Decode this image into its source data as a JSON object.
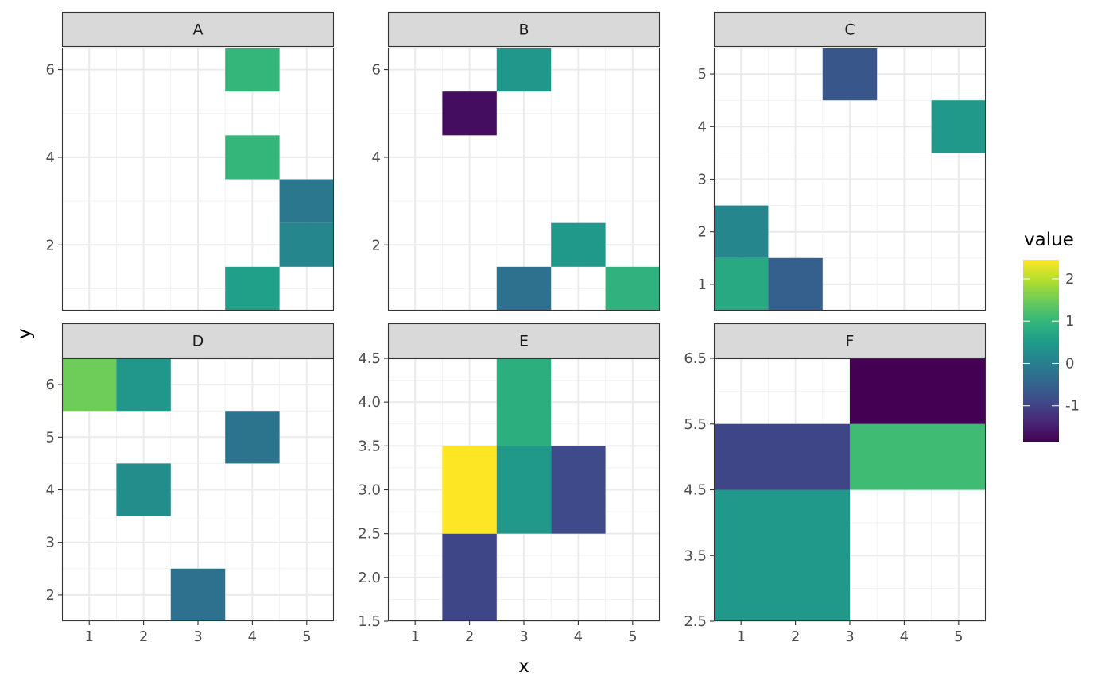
{
  "chart_data": {
    "type": "heatmap",
    "layout": "facet_wrap",
    "ncol": 3,
    "xlabel": "x",
    "ylabel": "y",
    "legend": {
      "title": "value",
      "position": "right",
      "breaks": [
        2,
        1,
        0,
        -1
      ],
      "break_labels": [
        "2",
        "1",
        "0",
        "-1"
      ],
      "range": [
        -1.85,
        2.45
      ],
      "colors": [
        "#440154",
        "#482878",
        "#3E4A89",
        "#31688E",
        "#26828E",
        "#1F9E89",
        "#35B779",
        "#6DCD59",
        "#B4DE2C",
        "#FDE725"
      ]
    },
    "panels": [
      {
        "label": "A",
        "xlim": [
          0.5,
          5.5
        ],
        "ylim": [
          0.5,
          6.5
        ],
        "x_major": [
          1,
          2,
          3,
          4,
          5
        ],
        "x_labels": [
          "1",
          "2",
          "3",
          "4",
          "5"
        ],
        "y_major": [
          2,
          4,
          6
        ],
        "y_labels": [
          "2",
          "4",
          "6"
        ],
        "tiles": [
          {
            "x": 4,
            "y": 1,
            "value": 0.55
          },
          {
            "x": 5,
            "y": 2,
            "value": 0.15
          },
          {
            "x": 5,
            "y": 3,
            "value": -0.15
          },
          {
            "x": 4,
            "y": 4,
            "value": 1.0
          },
          {
            "x": 4,
            "y": 6,
            "value": 1.0
          }
        ]
      },
      {
        "label": "B",
        "xlim": [
          0.5,
          5.5
        ],
        "ylim": [
          0.5,
          6.5
        ],
        "x_major": [
          1,
          2,
          3,
          4,
          5
        ],
        "x_labels": [
          "1",
          "2",
          "3",
          "4",
          "5"
        ],
        "y_major": [
          2,
          4,
          6
        ],
        "y_labels": [
          "2",
          "4",
          "6"
        ],
        "tiles": [
          {
            "x": 3,
            "y": 1,
            "value": -0.25
          },
          {
            "x": 5,
            "y": 1,
            "value": 0.9
          },
          {
            "x": 4,
            "y": 2,
            "value": 0.45
          },
          {
            "x": 2,
            "y": 5,
            "value": -1.7
          },
          {
            "x": 3,
            "y": 6,
            "value": 0.4
          }
        ]
      },
      {
        "label": "C",
        "xlim": [
          0.5,
          5.5
        ],
        "ylim": [
          0.5,
          5.5
        ],
        "x_major": [
          1,
          2,
          3,
          4,
          5
        ],
        "x_labels": [
          "1",
          "2",
          "3",
          "4",
          "5"
        ],
        "y_major": [
          1,
          2,
          3,
          4,
          5
        ],
        "y_labels": [
          "1",
          "2",
          "3",
          "4",
          "5"
        ],
        "tiles": [
          {
            "x": 1,
            "y": 1,
            "value": 0.75
          },
          {
            "x": 2,
            "y": 1,
            "value": -0.55
          },
          {
            "x": 1,
            "y": 2,
            "value": 0.15
          },
          {
            "x": 5,
            "y": 4,
            "value": 0.45
          },
          {
            "x": 3,
            "y": 5,
            "value": -0.7
          }
        ]
      },
      {
        "label": "D",
        "xlim": [
          0.5,
          5.5
        ],
        "ylim": [
          1.5,
          6.5
        ],
        "x_major": [
          1,
          2,
          3,
          4,
          5
        ],
        "x_labels": [
          "1",
          "2",
          "3",
          "4",
          "5"
        ],
        "y_major": [
          2,
          3,
          4,
          5,
          6
        ],
        "y_labels": [
          "2",
          "3",
          "4",
          "5",
          "6"
        ],
        "tiles": [
          {
            "x": 3,
            "y": 2,
            "value": -0.25
          },
          {
            "x": 2,
            "y": 4,
            "value": 0.25
          },
          {
            "x": 4,
            "y": 5,
            "value": -0.2
          },
          {
            "x": 1,
            "y": 6,
            "value": 1.5
          },
          {
            "x": 2,
            "y": 6,
            "value": 0.4
          }
        ]
      },
      {
        "label": "E",
        "xlim": [
          0.5,
          5.5
        ],
        "ylim": [
          1.5,
          4.5
        ],
        "x_major": [
          1,
          2,
          3,
          4,
          5
        ],
        "x_labels": [
          "1",
          "2",
          "3",
          "4",
          "5"
        ],
        "y_major": [
          1.5,
          2.0,
          2.5,
          3.0,
          3.5,
          4.0,
          4.5
        ],
        "y_labels": [
          "1.5",
          "2.0",
          "2.5",
          "3.0",
          "3.5",
          "4.0",
          "4.5"
        ],
        "tiles": [
          {
            "x": 2,
            "y": 2,
            "value": -0.95
          },
          {
            "x": 2,
            "y": 3,
            "value": 2.45
          },
          {
            "x": 3,
            "y": 3,
            "value": 0.45
          },
          {
            "x": 4,
            "y": 3,
            "value": -0.9
          },
          {
            "x": 3,
            "y": 4,
            "value": 0.85
          }
        ]
      },
      {
        "label": "F",
        "xlim": [
          0.5,
          5.5
        ],
        "ylim": [
          2.5,
          6.5
        ],
        "x_major": [
          1,
          2,
          3,
          4,
          5
        ],
        "x_labels": [
          "1",
          "2",
          "3",
          "4",
          "5"
        ],
        "y_major": [
          2.5,
          3.5,
          4.5,
          5.5,
          6.5
        ],
        "y_labels": [
          "2.5",
          "3.5",
          "4.5",
          "5.5",
          "6.5"
        ],
        "tiles": [
          {
            "x": 1.75,
            "y": 3.5,
            "w": 2.5,
            "h": 2,
            "value": 0.45
          },
          {
            "x": 1.75,
            "y": 5,
            "w": 2.5,
            "h": 1,
            "value": -0.95
          },
          {
            "x": 4.25,
            "y": 5,
            "w": 2.5,
            "h": 1,
            "value": 1.1
          },
          {
            "x": 4.25,
            "y": 6,
            "w": 2.5,
            "h": 1,
            "value": -1.85
          }
        ]
      }
    ]
  }
}
